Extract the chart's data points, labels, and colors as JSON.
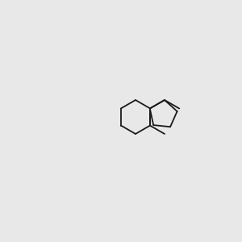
{
  "bg_color": "#e8e8e8",
  "bond_color": "#1a1a1a",
  "o_color": "#ff0000",
  "n_color": "#0000cd",
  "h_color": "#2e8b57",
  "font_size": 7.5,
  "lw": 1.3
}
